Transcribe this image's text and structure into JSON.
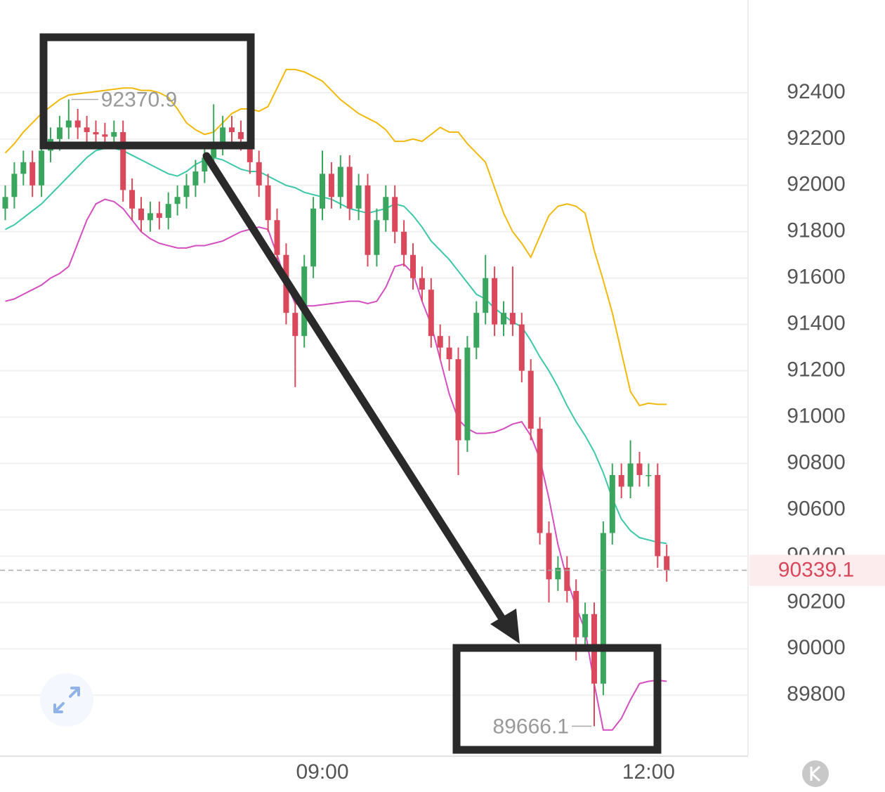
{
  "chart_data": {
    "type": "candlestick",
    "categories": [
      null,
      null,
      null,
      null,
      null,
      null,
      null,
      null,
      null,
      null,
      null,
      null,
      null,
      null,
      null,
      null,
      null,
      null,
      null,
      null,
      null,
      null,
      null,
      null,
      null,
      null,
      null,
      null,
      null,
      null,
      null,
      null,
      null,
      null,
      null,
      "09:00",
      null,
      null,
      null,
      null,
      null,
      null,
      null,
      null,
      null,
      null,
      null,
      null,
      null,
      null,
      null,
      null,
      null,
      null,
      null,
      null,
      null,
      null,
      null,
      null,
      null,
      null,
      null,
      null,
      null,
      null,
      null,
      null,
      null,
      null,
      null,
      "12:00",
      null,
      null
    ],
    "open": [
      91900,
      91950,
      92050,
      92100,
      92000,
      92150,
      92200,
      92250,
      92280,
      92250,
      92230,
      92220,
      92210,
      92230,
      91980,
      91900,
      91850,
      91880,
      91860,
      91920,
      91950,
      92000,
      92060,
      92120,
      92180,
      92250,
      92230,
      92200,
      92100,
      92000,
      91850,
      91700,
      91450,
      91350,
      91650,
      91900,
      92050,
      91950,
      92080,
      91900,
      92000,
      91700,
      91850,
      91950,
      91800,
      91700,
      91600,
      91550,
      91350,
      91300,
      91250,
      90900,
      91300,
      91450,
      91600,
      91400,
      91450,
      91400,
      91200,
      90950,
      90500,
      90300,
      90350,
      90250,
      90050,
      90150,
      89850,
      90500,
      90750,
      90700,
      90800,
      90750,
      90750,
      90400
    ],
    "high": [
      92000,
      92100,
      92150,
      92150,
      92200,
      92250,
      92300,
      92370.9,
      92330,
      92300,
      92280,
      92270,
      92280,
      92280,
      92030,
      91950,
      91930,
      91930,
      91970,
      92000,
      92050,
      92110,
      92170,
      92350,
      92300,
      92300,
      92280,
      92250,
      92150,
      92050,
      91900,
      91750,
      91500,
      91700,
      91950,
      92150,
      92100,
      92130,
      92130,
      92050,
      92050,
      91900,
      92000,
      92000,
      91850,
      91750,
      91650,
      91600,
      91400,
      91350,
      91300,
      91350,
      91500,
      91700,
      91650,
      91500,
      91650,
      91450,
      91250,
      91000,
      90550,
      90400,
      90400,
      90300,
      90200,
      90200,
      90550,
      90800,
      90800,
      90900,
      90850,
      90800,
      90800,
      90450
    ],
    "low": [
      91850,
      91900,
      92000,
      91950,
      91950,
      92100,
      92150,
      92200,
      92200,
      92180,
      92170,
      92160,
      92160,
      91930,
      91850,
      91800,
      91800,
      91810,
      91810,
      91870,
      91900,
      91950,
      92010,
      92070,
      92130,
      92180,
      92150,
      92050,
      91950,
      91800,
      91650,
      91400,
      91130,
      91300,
      91600,
      91850,
      91900,
      91900,
      91850,
      91850,
      91650,
      91650,
      91800,
      91750,
      91650,
      91550,
      91500,
      91300,
      91250,
      91200,
      90750,
      90850,
      91250,
      91400,
      91350,
      91350,
      91350,
      91150,
      90900,
      90450,
      90200,
      90250,
      90200,
      89950,
      90000,
      89666.1,
      89800,
      90450,
      90650,
      90650,
      90700,
      90700,
      90350,
      90290
    ],
    "close": [
      91950,
      92050,
      92100,
      92000,
      92150,
      92200,
      92250,
      92280,
      92250,
      92230,
      92220,
      92210,
      92230,
      91980,
      91900,
      91850,
      91880,
      91860,
      91920,
      91950,
      92000,
      92060,
      92120,
      92180,
      92250,
      92230,
      92200,
      92100,
      92000,
      91850,
      91700,
      91450,
      91350,
      91650,
      91900,
      92050,
      91950,
      92080,
      91900,
      92000,
      91700,
      91850,
      91950,
      91800,
      91700,
      91600,
      91550,
      91350,
      91300,
      91250,
      90900,
      91300,
      91450,
      91600,
      91400,
      91450,
      91400,
      91200,
      90950,
      90500,
      90300,
      90350,
      90250,
      90050,
      90150,
      89850,
      90500,
      90750,
      90700,
      90800,
      90750,
      90750,
      90400,
      90339.1
    ],
    "overlays": [
      {
        "color": "#f0b90b",
        "values": [
          92140,
          92180,
          92230,
          92270,
          92310,
          92340,
          92370,
          92390,
          92395,
          92400,
          92405,
          92410,
          92415,
          92420,
          92420,
          92410,
          92410,
          92400,
          92380,
          92330,
          92270,
          92240,
          92220,
          92230,
          92270,
          92310,
          92330,
          92330,
          92320,
          92340,
          92420,
          92500,
          92500,
          92490,
          92470,
          92450,
          92410,
          92370,
          92340,
          92310,
          92290,
          92270,
          92240,
          92190,
          92190,
          92200,
          92190,
          92220,
          92250,
          92230,
          92230,
          92180,
          92140,
          92100,
          91990,
          91880,
          91800,
          91750,
          91690,
          91780,
          91870,
          91910,
          91920,
          91910,
          91880,
          91720,
          91590,
          91450,
          91280,
          91110,
          91050,
          91060,
          91055,
          91055
        ]
      },
      {
        "color": "#3cc8a8",
        "values": [
          91810,
          91830,
          91860,
          91890,
          91920,
          91960,
          92000,
          92040,
          92080,
          92120,
          92150,
          92160,
          92160,
          92150,
          92130,
          92110,
          92090,
          92070,
          92050,
          92040,
          92060,
          92090,
          92110,
          92120,
          92110,
          92090,
          92070,
          92060,
          92060,
          92040,
          92020,
          92000,
          91990,
          91970,
          91960,
          91950,
          91940,
          91920,
          91900,
          91890,
          91880,
          91890,
          91900,
          91920,
          91910,
          91870,
          91820,
          91760,
          91720,
          91680,
          91630,
          91580,
          91530,
          91510,
          91470,
          91440,
          91410,
          91390,
          91330,
          91260,
          91200,
          91130,
          91050,
          90980,
          90920,
          90850,
          90760,
          90650,
          90560,
          90510,
          90480,
          90470,
          90460,
          90455
        ]
      },
      {
        "color": "#d44ec0",
        "values": [
          91500,
          91510,
          91530,
          91550,
          91570,
          91600,
          91620,
          91650,
          91750,
          91850,
          91920,
          91940,
          91930,
          91900,
          91850,
          91800,
          91770,
          91750,
          91740,
          91730,
          91730,
          91740,
          91740,
          91750,
          91760,
          91780,
          91800,
          91810,
          91820,
          91810,
          91700,
          91580,
          91490,
          91480,
          91480,
          91485,
          91490,
          91495,
          91500,
          91500,
          91490,
          91500,
          91560,
          91650,
          91660,
          91620,
          91500,
          91400,
          91250,
          91100,
          90990,
          90950,
          90930,
          90930,
          90935,
          90950,
          90970,
          90980,
          90920,
          90820,
          90650,
          90450,
          90300,
          90180,
          90080,
          89850,
          89650,
          89650,
          89700,
          89780,
          89850,
          89860,
          89865,
          89860
        ]
      }
    ],
    "up_color": "#3aa55c",
    "down_color": "#d9485b",
    "ylim": [
      89540,
      92800
    ],
    "yticks": [
      89800,
      90000,
      90200,
      90400,
      90600,
      90800,
      91000,
      91200,
      91400,
      91600,
      91800,
      92000,
      92200,
      92400
    ],
    "grid": true
  }
}
